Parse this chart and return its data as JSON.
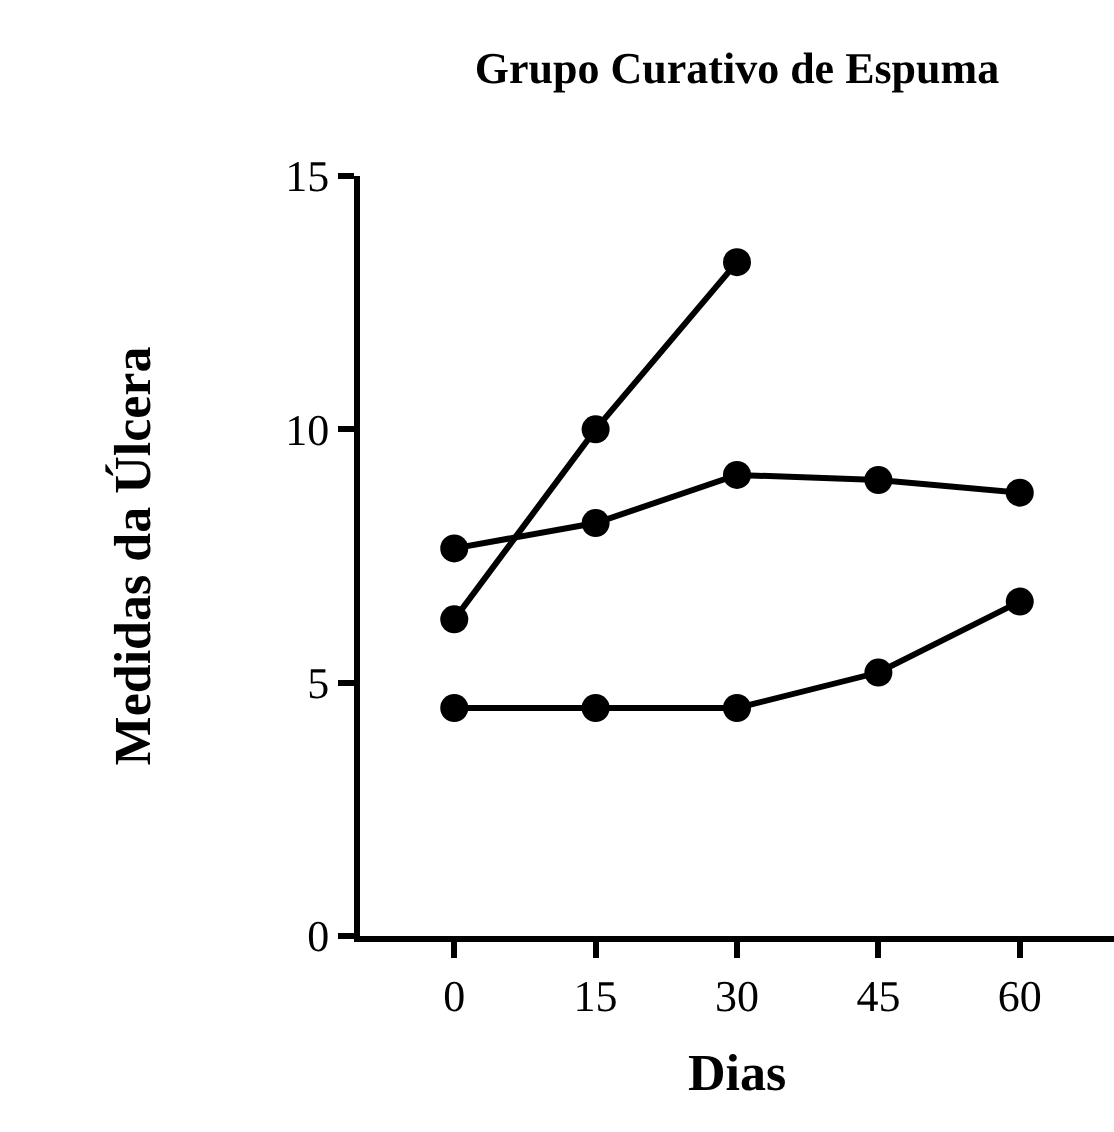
{
  "chart_data": {
    "type": "line",
    "title": "Grupo Curativo de Espuma",
    "xlabel": "Dias",
    "ylabel": "Medidas da Úlcera",
    "series": [
      {
        "color": "#000000",
        "x": [
          0,
          15,
          30
        ],
        "values": [
          6.25,
          10.0,
          13.3
        ]
      },
      {
        "color": "#000000",
        "x": [
          0,
          15,
          30,
          45,
          60
        ],
        "values": [
          7.65,
          8.15,
          9.1,
          9.0,
          8.75
        ]
      },
      {
        "color": "#000000",
        "x": [
          0,
          15,
          30,
          45,
          60
        ],
        "values": [
          4.5,
          4.5,
          4.5,
          5.2,
          6.6
        ]
      }
    ],
    "xlim": [
      -10,
      70
    ],
    "xticks": [
      0,
      15,
      30,
      45,
      60
    ],
    "ylim": [
      0,
      15
    ],
    "yticks": [
      0,
      5,
      10,
      15
    ],
    "grid": false,
    "marker": "circle",
    "line_style": "solid"
  }
}
